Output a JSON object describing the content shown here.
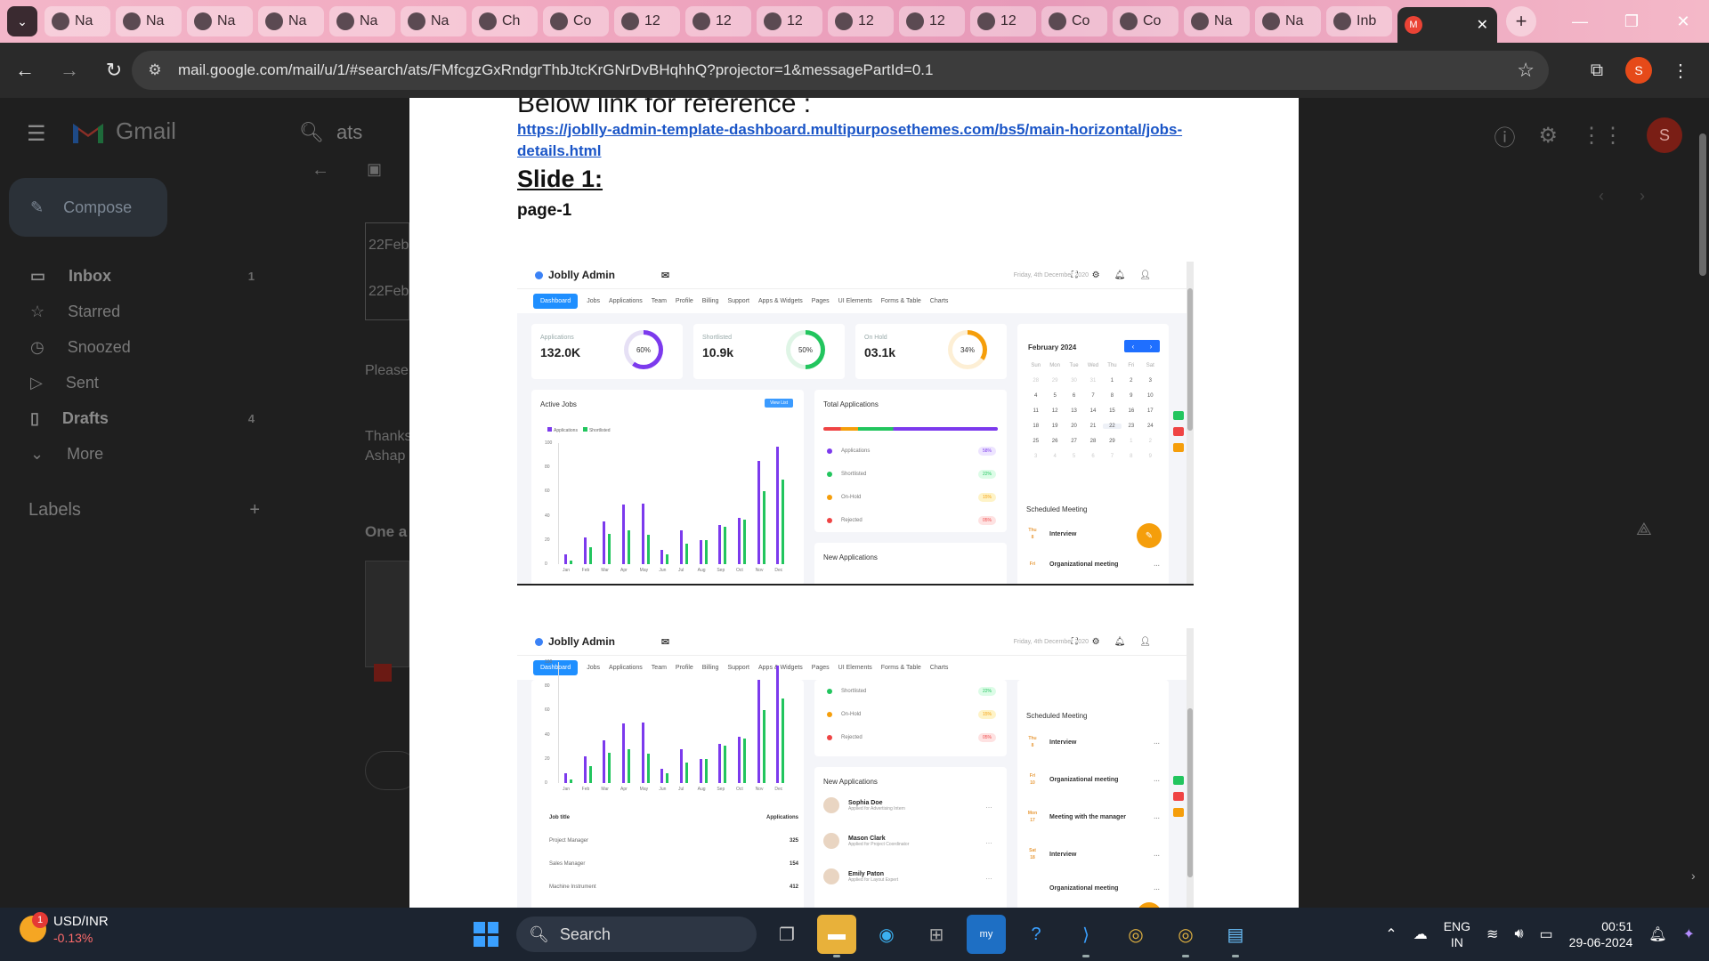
{
  "browser": {
    "tabs": [
      {
        "label": "Na"
      },
      {
        "label": "Na"
      },
      {
        "label": "Na"
      },
      {
        "label": "Na"
      },
      {
        "label": "Na"
      },
      {
        "label": "Na"
      },
      {
        "label": "Ch"
      },
      {
        "label": "Co"
      },
      {
        "label": "12"
      },
      {
        "label": "12"
      },
      {
        "label": "12"
      },
      {
        "label": "12"
      },
      {
        "label": "12"
      },
      {
        "label": "12"
      },
      {
        "label": "Co"
      },
      {
        "label": "Co"
      },
      {
        "label": "Na"
      },
      {
        "label": "Na"
      },
      {
        "label": "Inb"
      }
    ],
    "url": "mail.google.com/mail/u/1/#search/ats/FMfcgzGxRndgrThbJtcKrGNrDvBHqhhQ?projector=1&messagePartId=0.1",
    "profile_initial": "S"
  },
  "gmail": {
    "app_name": "Gmail",
    "search_query": "ats",
    "compose_label": "Compose",
    "nav": [
      {
        "label": "Inbox",
        "count": "1"
      },
      {
        "label": "Starred",
        "count": ""
      },
      {
        "label": "Snoozed",
        "count": ""
      },
      {
        "label": "Sent",
        "count": ""
      },
      {
        "label": "Drafts",
        "count": "4"
      },
      {
        "label": "More",
        "count": ""
      }
    ],
    "labels_title": "Labels",
    "avatar_initial": "S",
    "fragments": {
      "date1": "22Feb",
      "date2": "22Feb",
      "please": "Please",
      "thanks": "Thanks",
      "asha": "Ashap",
      "one": "One a"
    }
  },
  "document": {
    "heading": "Below link for reference :",
    "link": "https://joblly-admin-template-dashboard.multipurposethemes.com/bs5/main-horizontal/jobs-details.html",
    "slide_title": "Slide 1:",
    "page_label": "page-1"
  },
  "dashboard": {
    "brand": "Joblly Admin",
    "date": "Friday, 4th December 2020",
    "nav": [
      "Dashboard",
      "Jobs",
      "Applications",
      "Team",
      "Profile",
      "Billing",
      "Support",
      "Apps & Widgets",
      "Pages",
      "UI Elements",
      "Forms & Table",
      "Charts"
    ],
    "stats": [
      {
        "title": "Applications",
        "value": "132.0K",
        "pct": "60%",
        "color": "#7c3aed"
      },
      {
        "title": "Shortlisted",
        "value": "10.9k",
        "pct": "50%",
        "color": "#22c55e"
      },
      {
        "title": "On Hold",
        "value": "03.1k",
        "pct": "34%",
        "color": "#f59e0b"
      }
    ],
    "active_jobs_title": "Active Jobs",
    "view_list": "View List",
    "legend": [
      "Applications",
      "Shortlisted"
    ],
    "total_applications_title": "Total Applications",
    "ta_rows": [
      {
        "label": "Applications",
        "pct": "58%",
        "color": "#7c3aed",
        "bg": "#ede4ff"
      },
      {
        "label": "Shortlisted",
        "pct": "22%",
        "color": "#22c55e",
        "bg": "#dcfce7"
      },
      {
        "label": "On-Hold",
        "pct": "15%",
        "color": "#f59e0b",
        "bg": "#fef3c7"
      },
      {
        "label": "Rejected",
        "pct": "05%",
        "color": "#ef4444",
        "bg": "#fee2e2"
      }
    ],
    "new_applications_title": "New Applications",
    "calendar_month": "February 2024",
    "weekdays": [
      "Sun",
      "Mon",
      "Tue",
      "Wed",
      "Thu",
      "Fri",
      "Sat"
    ],
    "scheduled_title": "Scheduled Meeting",
    "meetings": [
      {
        "day": "Thu",
        "date": "8",
        "title": "Interview"
      },
      {
        "day": "Fri",
        "date": "10",
        "title": "Organizational meeting"
      },
      {
        "day": "Mon",
        "date": "17",
        "title": "Meeting with the manager"
      },
      {
        "day": "Sat",
        "date": "18",
        "title": "Interview"
      },
      {
        "day": "",
        "date": "",
        "title": "Organizational meeting"
      }
    ],
    "applicants": [
      {
        "name": "Sophia Doe",
        "role": "Applied for Advertising Intern"
      },
      {
        "name": "Mason Clark",
        "role": "Applied for Project Coordinator"
      },
      {
        "name": "Emily Paton",
        "role": "Applied for Layout Expert"
      }
    ],
    "job_table": {
      "col1": "Job title",
      "col2": "Applications",
      "rows": [
        {
          "title": "Project Manager",
          "count": "325"
        },
        {
          "title": "Sales Manager",
          "count": "154"
        },
        {
          "title": "Machine Instrument",
          "count": "412"
        }
      ]
    }
  },
  "chart_data": {
    "type": "bar",
    "categories": [
      "Jan",
      "Feb",
      "Mar",
      "Apr",
      "May",
      "Jun",
      "Jul",
      "Aug",
      "Sep",
      "Oct",
      "Nov",
      "Dec"
    ],
    "series": [
      {
        "name": "Applications",
        "values": [
          8,
          22,
          35,
          49,
          50,
          12,
          28,
          20,
          32,
          38,
          85,
          97
        ],
        "color": "#7c3aed"
      },
      {
        "name": "Shortlisted",
        "values": [
          3,
          14,
          25,
          28,
          24,
          8,
          17,
          20,
          31,
          37,
          60,
          70
        ],
        "color": "#22c55e"
      }
    ],
    "yticks": [
      "0",
      "20",
      "40",
      "60",
      "80",
      "100"
    ],
    "ylim": [
      0,
      100
    ]
  },
  "taskbar": {
    "ticker_name": "USD/INR",
    "ticker_change": "-0.13%",
    "ticker_badge": "1",
    "search_label": "Search",
    "lang_line1": "ENG",
    "lang_line2": "IN",
    "time": "00:51",
    "date": "29-06-2024"
  }
}
